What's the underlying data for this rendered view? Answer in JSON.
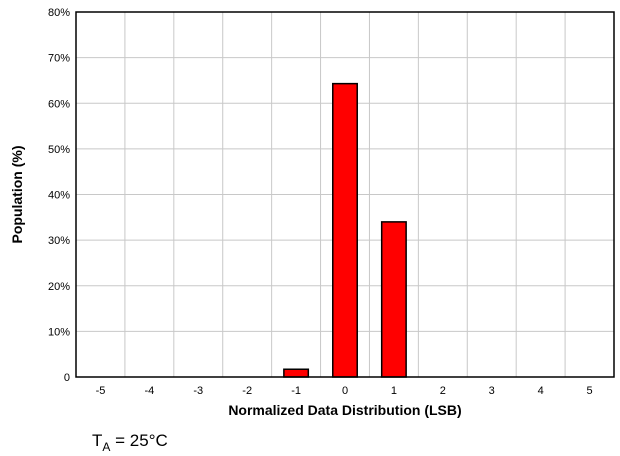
{
  "chart_data": {
    "type": "bar",
    "categories": [
      "-5",
      "-4",
      "-3",
      "-2",
      "-1",
      "0",
      "1",
      "2",
      "3",
      "4",
      "5"
    ],
    "values": [
      0,
      0,
      0,
      0,
      1.7,
      64.3,
      34.0,
      0,
      0,
      0,
      0
    ],
    "xlabel": "Normalized Data Distribution (LSB)",
    "ylabel": "Population (%)",
    "ylim": [
      0,
      80
    ],
    "y_ticks": [
      0,
      10,
      20,
      30,
      40,
      50,
      60,
      70,
      80
    ],
    "y_tick_labels": [
      "0",
      "10%",
      "20%",
      "30%",
      "40%",
      "50%",
      "60%",
      "70%",
      "80%"
    ],
    "grid": true,
    "bar_color": "#ff0000",
    "annotation": {
      "main": "T",
      "subscript": "A",
      "rest": " = 25°C"
    }
  }
}
